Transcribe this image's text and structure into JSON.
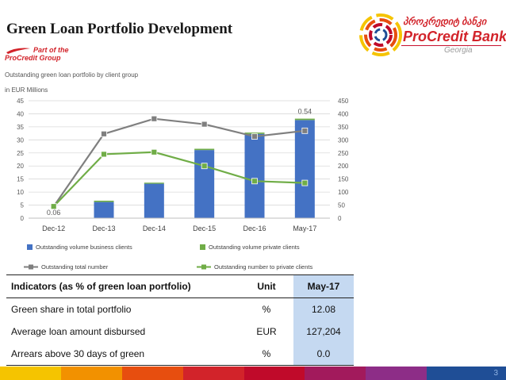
{
  "header": {
    "title": "Green Loan Portfolio Development",
    "part_of_line1": "Part of the",
    "part_of_line2": "ProCredit Group",
    "logo_georgian": "პროკრედიტ ბანკი",
    "logo_brand": "ProCredit Bank",
    "logo_country": "Georgia"
  },
  "chart_data": {
    "type": "bar",
    "subtitle": "Outstanding green loan portfolio by client group",
    "ylabel_left": "in EUR Millions",
    "categories": [
      "Dec-12",
      "Dec-13",
      "Dec-14",
      "Dec-15",
      "Dec-16",
      "May-17"
    ],
    "ylim_left": [
      0,
      45
    ],
    "ylim_right": [
      0,
      450
    ],
    "yticks_left": [
      "0",
      "5",
      "10",
      "15",
      "20",
      "25",
      "30",
      "35",
      "40",
      "45"
    ],
    "yticks_right": [
      "0",
      "50",
      "100",
      "150",
      "200",
      "250",
      "300",
      "350",
      "400",
      "450"
    ],
    "series": [
      {
        "name": "Outstanding volume business clients",
        "type": "bar",
        "axis": "left",
        "color": "#4472c4",
        "values": [
          0.06,
          6.2,
          13.2,
          26.1,
          32.3,
          37.6
        ]
      },
      {
        "name": "Outstanding volume private clients",
        "type": "bar",
        "axis": "left",
        "color": "#70ad47",
        "values": [
          0,
          0.5,
          0.4,
          0.5,
          0.5,
          0.54
        ]
      },
      {
        "name": "Outstanding total number",
        "type": "line",
        "axis": "right",
        "color": "#7f7f7f",
        "values": [
          45,
          323,
          381,
          360,
          313,
          335
        ]
      },
      {
        "name": "Outstanding number to private clients",
        "type": "line",
        "axis": "right",
        "color": "#70ad47",
        "values": [
          45,
          245,
          253,
          200,
          142,
          135
        ]
      }
    ],
    "data_labels": [
      {
        "category": "Dec-12",
        "text": "0.06"
      },
      {
        "category": "May-17",
        "text": "0.54"
      }
    ],
    "legend_position": "bottom"
  },
  "table": {
    "headers": [
      "Indicators (as % of green loan portfolio)",
      "Unit",
      "May-17"
    ],
    "rows": [
      [
        "Green share in total portfolio",
        "%",
        "12.08"
      ],
      [
        "Average loan amount disbursed",
        "EUR",
        "127,204"
      ],
      [
        "Arrears above 30 days of green",
        "%",
        "0.0"
      ]
    ]
  },
  "footer": {
    "page_number": "3",
    "stripe_colors": [
      "#f5c400",
      "#f29100",
      "#e74e0f",
      "#d2232a",
      "#c00a2a",
      "#a21a5c",
      "#8d2d87",
      "#1f4e96"
    ]
  }
}
